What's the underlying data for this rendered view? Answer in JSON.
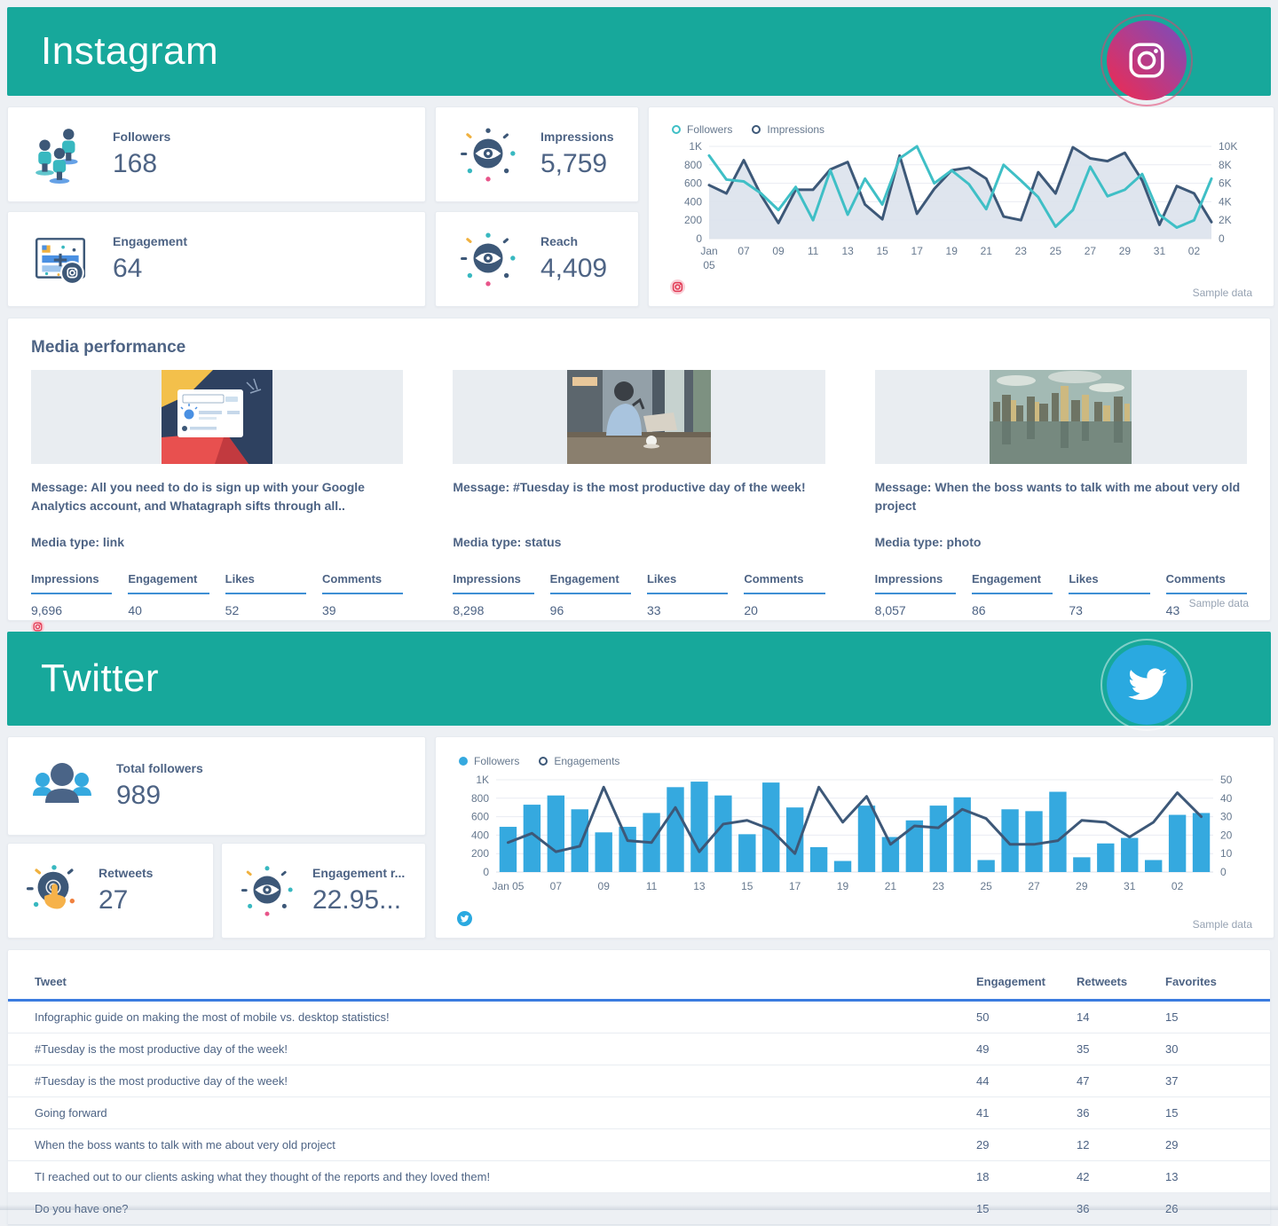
{
  "instagram": {
    "title": "Instagram",
    "kpis": [
      {
        "label": "Followers",
        "value": "168"
      },
      {
        "label": "Impressions",
        "value": "5,759"
      },
      {
        "label": "Engagement",
        "value": "64"
      },
      {
        "label": "Reach",
        "value": "4,409"
      }
    ],
    "legend": [
      "Followers",
      "Impressions"
    ],
    "sample_label": "Sample data",
    "media": {
      "title": "Media performance",
      "metric_headers": [
        "Impressions",
        "Engagement",
        "Likes",
        "Comments"
      ],
      "sample_label": "Sample data",
      "items": [
        {
          "message": "Message: All you need to do is sign up with your Google Analytics account, and Whatagraph sifts through all..",
          "media_type": "Media type: link",
          "image": "link-post-thumbnail",
          "impressions": "9,696",
          "engagement": "40",
          "likes": "52",
          "comments": "39"
        },
        {
          "message": "Message: #Tuesday is the most productive day of the week!",
          "media_type": "Media type: status",
          "image": "status-post-thumbnail",
          "impressions": "8,298",
          "engagement": "96",
          "likes": "33",
          "comments": "20"
        },
        {
          "message": "Message: When the boss wants to talk with me about very old project",
          "media_type": "Media type: photo",
          "image": "photo-post-thumbnail",
          "impressions": "8,057",
          "engagement": "86",
          "likes": "73",
          "comments": "43"
        }
      ]
    }
  },
  "twitter": {
    "title": "Twitter",
    "kpis": [
      {
        "label": "Total followers",
        "value": "989"
      },
      {
        "label": "Retweets",
        "value": "27"
      },
      {
        "label": "Engagement r...",
        "value": "22.95..."
      }
    ],
    "legend": [
      "Followers",
      "Engagements"
    ],
    "sample_label": "Sample data",
    "table": {
      "headers": [
        "Tweet",
        "Engagement",
        "Retweets",
        "Favorites"
      ],
      "rows": [
        {
          "tweet": "Infographic guide on making the most of mobile vs. desktop statistics!",
          "engagement": "50",
          "retweets": "14",
          "favorites": "15"
        },
        {
          "tweet": "#Tuesday is the most productive day of the week!",
          "engagement": "49",
          "retweets": "35",
          "favorites": "30"
        },
        {
          "tweet": "#Tuesday is the most productive day of the week!",
          "engagement": "44",
          "retweets": "47",
          "favorites": "37"
        },
        {
          "tweet": "Going forward",
          "engagement": "41",
          "retweets": "36",
          "favorites": "15"
        },
        {
          "tweet": "When the boss wants to talk with me about very old project",
          "engagement": "29",
          "retweets": "12",
          "favorites": "29"
        },
        {
          "tweet": "TI reached out to our clients asking what they thought of the reports and they loved them!",
          "engagement": "18",
          "retweets": "42",
          "favorites": "13"
        },
        {
          "tweet": "Do you have one?",
          "engagement": "15",
          "retweets": "36",
          "favorites": "26"
        }
      ]
    }
  },
  "chart_data": [
    {
      "id": "instagram-followers-impressions",
      "type": "line",
      "has_bars": false,
      "x_dates": "Jan 05 - Feb 03",
      "tick_positions": [
        0,
        2,
        4,
        6,
        8,
        10,
        12,
        14,
        16,
        18,
        20,
        22,
        24,
        26,
        28
      ],
      "tick_labels": [
        "Jan\n05",
        "07",
        "09",
        "11",
        "13",
        "15",
        "17",
        "19",
        "21",
        "23",
        "25",
        "27",
        "29",
        "31",
        "02"
      ],
      "left_axis": {
        "max": 1000,
        "ticks": [
          "0",
          "200",
          "400",
          "600",
          "800",
          "1K"
        ]
      },
      "right_axis": {
        "max": 10000,
        "ticks": [
          "0",
          "2K",
          "4K",
          "6K",
          "8K",
          "10K"
        ]
      },
      "series": [
        {
          "name": "Impressions",
          "type": "line",
          "axis": "right",
          "color": "#3d5878",
          "fill": "#dce2ec",
          "values": [
            5800,
            4900,
            8500,
            4700,
            1700,
            5300,
            5300,
            7500,
            8300,
            3700,
            2100,
            9000,
            2700,
            5400,
            7400,
            7700,
            6500,
            2400,
            2000,
            7200,
            4900,
            9900,
            8700,
            8400,
            9300,
            6300,
            1500,
            5700,
            4900,
            1800
          ]
        },
        {
          "name": "Followers",
          "type": "line",
          "axis": "left",
          "color": "#3fbfc6",
          "values": [
            900,
            640,
            620,
            490,
            310,
            560,
            200,
            740,
            260,
            650,
            370,
            870,
            1000,
            600,
            740,
            590,
            320,
            800,
            630,
            450,
            130,
            310,
            780,
            460,
            530,
            700,
            260,
            120,
            200,
            650
          ]
        }
      ]
    },
    {
      "id": "twitter-followers-engagements",
      "type": "bar",
      "has_bars": true,
      "x_dates": "Jan 05 - Feb 03",
      "tick_positions": [
        0,
        2,
        4,
        6,
        8,
        10,
        12,
        14,
        16,
        18,
        20,
        22,
        24,
        26,
        28
      ],
      "tick_labels": [
        "Jan 05",
        "07",
        "09",
        "11",
        "13",
        "15",
        "17",
        "19",
        "21",
        "23",
        "25",
        "27",
        "29",
        "31",
        "02"
      ],
      "left_axis": {
        "max": 1000,
        "ticks": [
          "0",
          "200",
          "400",
          "600",
          "800",
          "1K"
        ]
      },
      "right_axis": {
        "max": 50,
        "ticks": [
          "0",
          "10",
          "20",
          "30",
          "40",
          "50"
        ]
      },
      "series": [
        {
          "name": "Followers",
          "type": "bar",
          "axis": "left",
          "color": "#35a9df",
          "values": [
            490,
            730,
            830,
            680,
            430,
            490,
            640,
            920,
            980,
            830,
            410,
            970,
            700,
            270,
            120,
            720,
            380,
            560,
            720,
            810,
            130,
            680,
            660,
            870,
            160,
            310,
            370,
            130,
            620,
            640
          ]
        },
        {
          "name": "Engagements",
          "type": "line",
          "axis": "right",
          "color": "#3d5878",
          "values": [
            16,
            21,
            11,
            14,
            46,
            17,
            16,
            35,
            11,
            26,
            28,
            23,
            10,
            46,
            27,
            41,
            15,
            25,
            24,
            34,
            29,
            15,
            15,
            17,
            28,
            27,
            19,
            27,
            43,
            30
          ]
        }
      ]
    }
  ]
}
